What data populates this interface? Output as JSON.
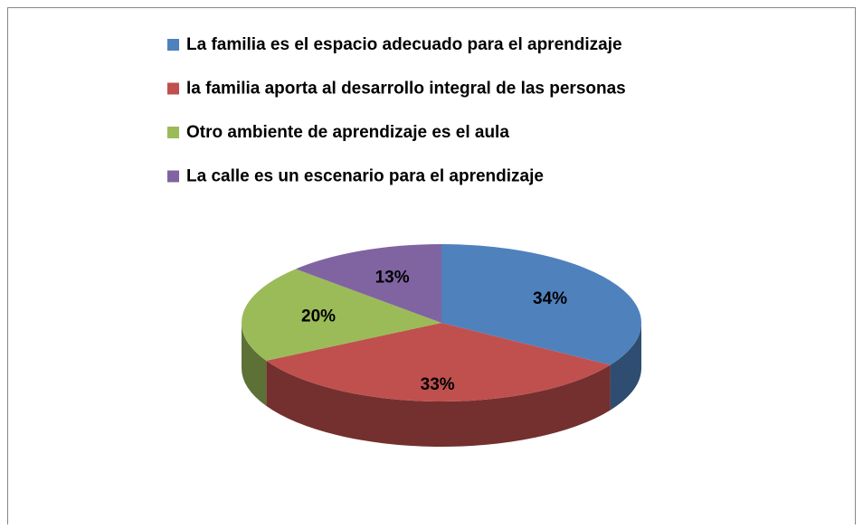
{
  "chart_data": {
    "type": "pie",
    "categories": [
      "La familia es el espacio adecuado para el aprendizaje",
      "la familia aporta al desarrollo integral de las personas",
      "Otro ambiente de aprendizaje es el aula",
      "La calle es un escenario para el aprendizaje"
    ],
    "values": [
      34,
      33,
      20,
      13
    ],
    "value_labels": [
      "34%",
      "33%",
      "20%",
      "13%"
    ],
    "colors": [
      "#4f81bd",
      "#c0504d",
      "#9bbb59",
      "#8064a2"
    ],
    "legend": "top"
  }
}
